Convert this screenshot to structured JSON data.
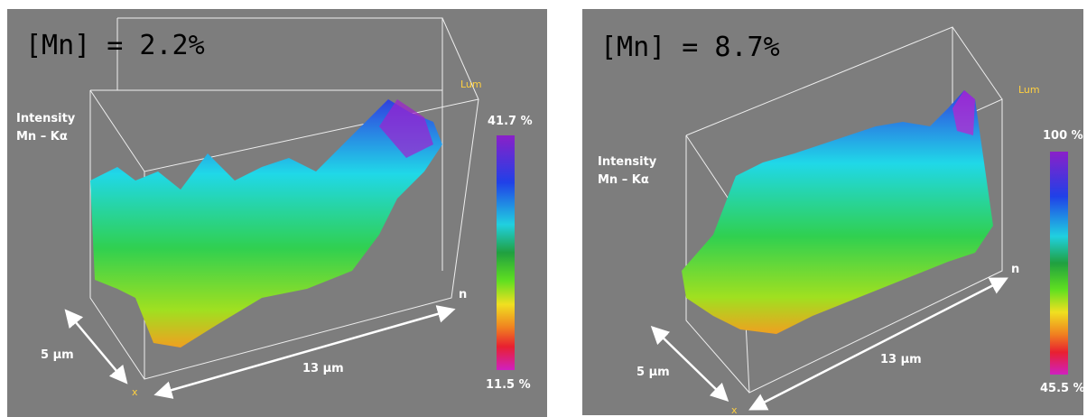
{
  "panels": [
    {
      "title": "[Mn] = 2.2%",
      "axis_label_1": "Intensity",
      "axis_label_2": "Mn – Kα",
      "scale_max": "41.7 %",
      "scale_min": "11.5 %",
      "depth": "5 µm",
      "length": "13 µm",
      "corner_label": "Lum",
      "axis_n": "n",
      "axis_x": "x"
    },
    {
      "title": "[Mn] = 8.7%",
      "axis_label_1": "Intensity",
      "axis_label_2": "Mn – Kα",
      "scale_max": "100 %",
      "scale_min": "45.5 %",
      "depth": "5 µm",
      "length": "13 µm",
      "corner_label": "Lum",
      "axis_n": "n",
      "axis_x": "x"
    }
  ]
}
